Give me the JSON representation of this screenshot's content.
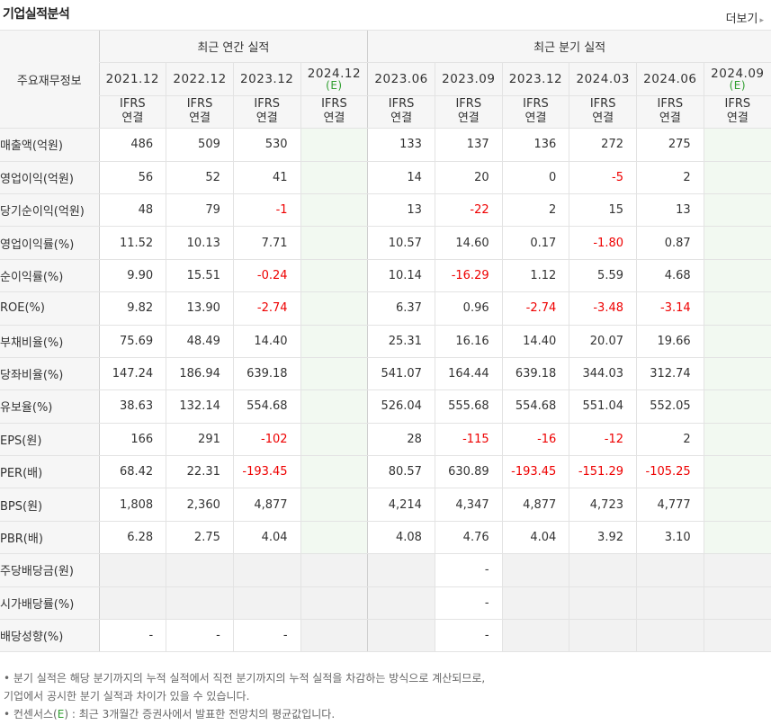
{
  "header": {
    "title": "기업실적분석",
    "more": "더보기",
    "more_arrow": "▸"
  },
  "table": {
    "row_header_label": "주요재무정보",
    "annual_label": "최근 연간 실적",
    "quarter_label": "최근 분기 실적",
    "periods": [
      {
        "label": "2021.12",
        "est": "",
        "ifrs": "IFRS",
        "basis": "연결"
      },
      {
        "label": "2022.12",
        "est": "",
        "ifrs": "IFRS",
        "basis": "연결"
      },
      {
        "label": "2023.12",
        "est": "",
        "ifrs": "IFRS",
        "basis": "연결"
      },
      {
        "label": "2024.12",
        "est": "(E)",
        "ifrs": "IFRS",
        "basis": "연결"
      },
      {
        "label": "2023.06",
        "est": "",
        "ifrs": "IFRS",
        "basis": "연결"
      },
      {
        "label": "2023.09",
        "est": "",
        "ifrs": "IFRS",
        "basis": "연결"
      },
      {
        "label": "2023.12",
        "est": "",
        "ifrs": "IFRS",
        "basis": "연결"
      },
      {
        "label": "2024.03",
        "est": "",
        "ifrs": "IFRS",
        "basis": "연결"
      },
      {
        "label": "2024.06",
        "est": "",
        "ifrs": "IFRS",
        "basis": "연결"
      },
      {
        "label": "2024.09",
        "est": "(E)",
        "ifrs": "IFRS",
        "basis": "연결"
      }
    ],
    "rows": [
      {
        "label": "매출액(억원)",
        "values": [
          "486",
          "509",
          "530",
          "",
          "133",
          "137",
          "136",
          "272",
          "275",
          ""
        ]
      },
      {
        "label": "영업이익(억원)",
        "values": [
          "56",
          "52",
          "41",
          "",
          "14",
          "20",
          "0",
          "-5",
          "2",
          ""
        ]
      },
      {
        "label": "당기순이익(억원)",
        "values": [
          "48",
          "79",
          "-1",
          "",
          "13",
          "-22",
          "2",
          "15",
          "13",
          ""
        ]
      },
      {
        "label": "영업이익률(%)",
        "values": [
          "11.52",
          "10.13",
          "7.71",
          "",
          "10.57",
          "14.60",
          "0.17",
          "-1.80",
          "0.87",
          ""
        ]
      },
      {
        "label": "순이익률(%)",
        "values": [
          "9.90",
          "15.51",
          "-0.24",
          "",
          "10.14",
          "-16.29",
          "1.12",
          "5.59",
          "4.68",
          ""
        ]
      },
      {
        "label": "ROE(%)",
        "values": [
          "9.82",
          "13.90",
          "-2.74",
          "",
          "6.37",
          "0.96",
          "-2.74",
          "-3.48",
          "-3.14",
          ""
        ]
      },
      {
        "label": "부채비율(%)",
        "values": [
          "75.69",
          "48.49",
          "14.40",
          "",
          "25.31",
          "16.16",
          "14.40",
          "20.07",
          "19.66",
          ""
        ]
      },
      {
        "label": "당좌비율(%)",
        "values": [
          "147.24",
          "186.94",
          "639.18",
          "",
          "541.07",
          "164.44",
          "639.18",
          "344.03",
          "312.74",
          ""
        ]
      },
      {
        "label": "유보율(%)",
        "values": [
          "38.63",
          "132.14",
          "554.68",
          "",
          "526.04",
          "555.68",
          "554.68",
          "551.04",
          "552.05",
          ""
        ]
      },
      {
        "label": "EPS(원)",
        "values": [
          "166",
          "291",
          "-102",
          "",
          "28",
          "-115",
          "-16",
          "-12",
          "2",
          ""
        ]
      },
      {
        "label": "PER(배)",
        "values": [
          "68.42",
          "22.31",
          "-193.45",
          "",
          "80.57",
          "630.89",
          "-193.45",
          "-151.29",
          "-105.25",
          ""
        ]
      },
      {
        "label": "BPS(원)",
        "values": [
          "1,808",
          "2,360",
          "4,877",
          "",
          "4,214",
          "4,347",
          "4,877",
          "4,723",
          "4,777",
          ""
        ]
      },
      {
        "label": "PBR(배)",
        "values": [
          "6.28",
          "2.75",
          "4.04",
          "",
          "4.08",
          "4.76",
          "4.04",
          "3.92",
          "3.10",
          ""
        ]
      },
      {
        "label": "주당배당금(원)",
        "values": [
          "",
          "",
          "",
          "",
          "",
          "-",
          "",
          "",
          "",
          ""
        ]
      },
      {
        "label": "시가배당률(%)",
        "values": [
          "",
          "",
          "",
          "",
          "",
          "-",
          "",
          "",
          "",
          ""
        ]
      },
      {
        "label": "배당성향(%)",
        "values": [
          "-",
          "-",
          "-",
          "",
          "",
          "-",
          "",
          "",
          "",
          ""
        ]
      }
    ]
  },
  "footnotes": {
    "line1": "• 분기 실적은 해당 분기까지의 누적 실적에서 직전 분기까지의 누적 실적을 차감하는 방식으로 계산되므로,",
    "line2": "   기업에서 공시한 분기 실적과 차이가 있을 수 있습니다.",
    "line3_pre": "• 컨센서스(",
    "line3_e": "E",
    "line3_post": ") : 최근 3개월간 증권사에서 발표한 전망치의 평균값입니다."
  }
}
